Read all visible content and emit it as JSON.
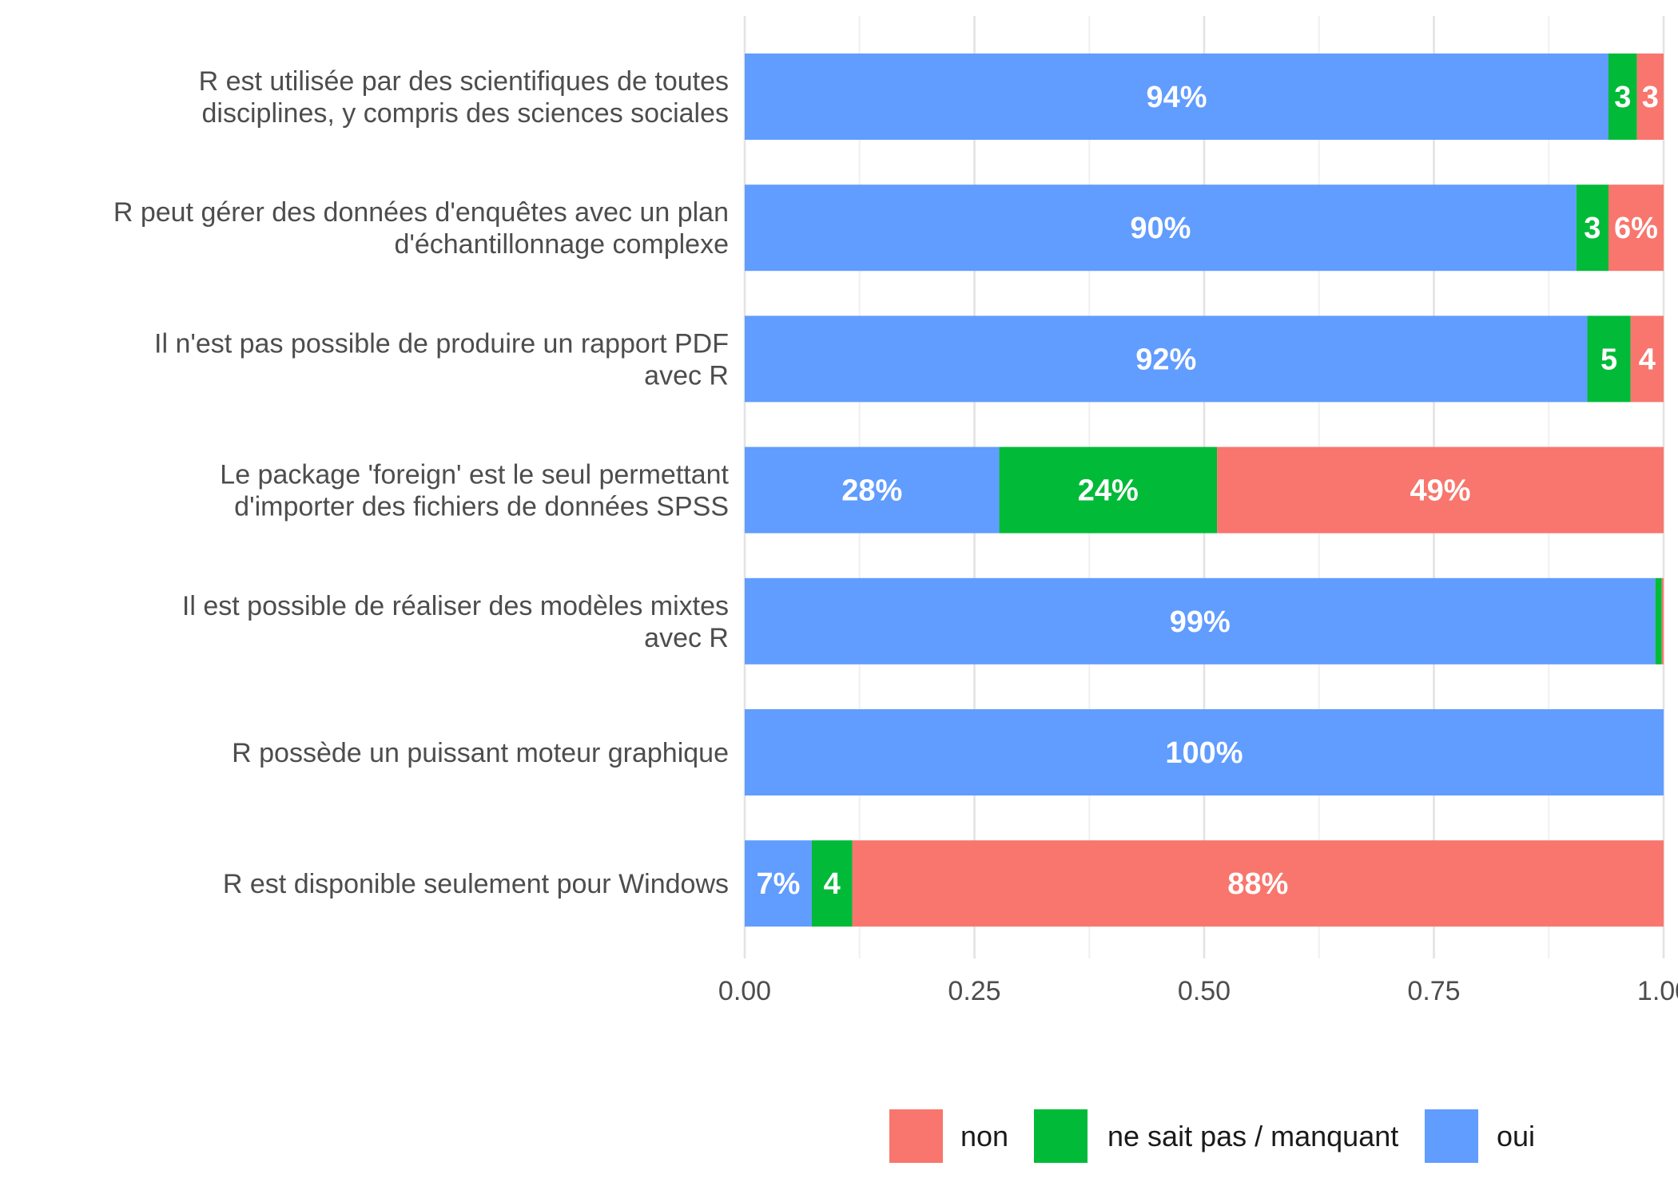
{
  "chart_data": {
    "type": "bar",
    "orientation": "horizontal",
    "stacked": true,
    "title": "",
    "xlabel": "",
    "ylabel": "",
    "xlim": [
      0,
      1
    ],
    "x_ticks": [
      0,
      0.25,
      0.5,
      0.75,
      1
    ],
    "x_tick_labels": [
      "0.00",
      "0.25",
      "0.50",
      "0.75",
      "1.00"
    ],
    "grid": true,
    "legend_position": "bottom",
    "categories": [
      {
        "lines": [
          "R est utilisée par des scientifiques de toutes",
          "disciplines, y compris des sciences sociales"
        ]
      },
      {
        "lines": [
          "R peut gérer des données d'enquêtes avec un plan",
          "d'échantillonnage complexe"
        ]
      },
      {
        "lines": [
          "Il n'est pas possible de produire un rapport PDF",
          "avec R"
        ]
      },
      {
        "lines": [
          "Le package 'foreign' est le seul permettant",
          "d'importer des fichiers de données SPSS"
        ]
      },
      {
        "lines": [
          "Il est possible de réaliser des modèles mixtes",
          "avec R"
        ]
      },
      {
        "lines": [
          "R possède un puissant moteur graphique"
        ]
      },
      {
        "lines": [
          "R est disponible seulement pour Windows"
        ]
      }
    ],
    "series": [
      {
        "name": "oui",
        "color": "#619CFF",
        "values": [
          0.94,
          0.905,
          0.917,
          0.277,
          0.991,
          1.0,
          0.073
        ],
        "labels": [
          "94%",
          "90%",
          "92%",
          "28%",
          "99%",
          "100%",
          "7%"
        ]
      },
      {
        "name": "ne sait pas / manquant",
        "color": "#00BA38",
        "values": [
          0.031,
          0.035,
          0.047,
          0.237,
          0.007,
          0.0,
          0.044
        ],
        "labels": [
          "3",
          "3",
          "5",
          "24%",
          "",
          "",
          "4"
        ]
      },
      {
        "name": "non",
        "color": "#F8766D",
        "values": [
          0.029,
          0.06,
          0.036,
          0.486,
          0.002,
          0.0,
          0.883
        ],
        "labels": [
          "3",
          "6%",
          "4",
          "49%",
          "",
          "",
          "88%"
        ]
      }
    ],
    "legend": [
      {
        "name": "non",
        "color": "#F8766D"
      },
      {
        "name": "ne sait pas / manquant",
        "color": "#00BA38"
      },
      {
        "name": "oui",
        "color": "#619CFF"
      }
    ]
  }
}
